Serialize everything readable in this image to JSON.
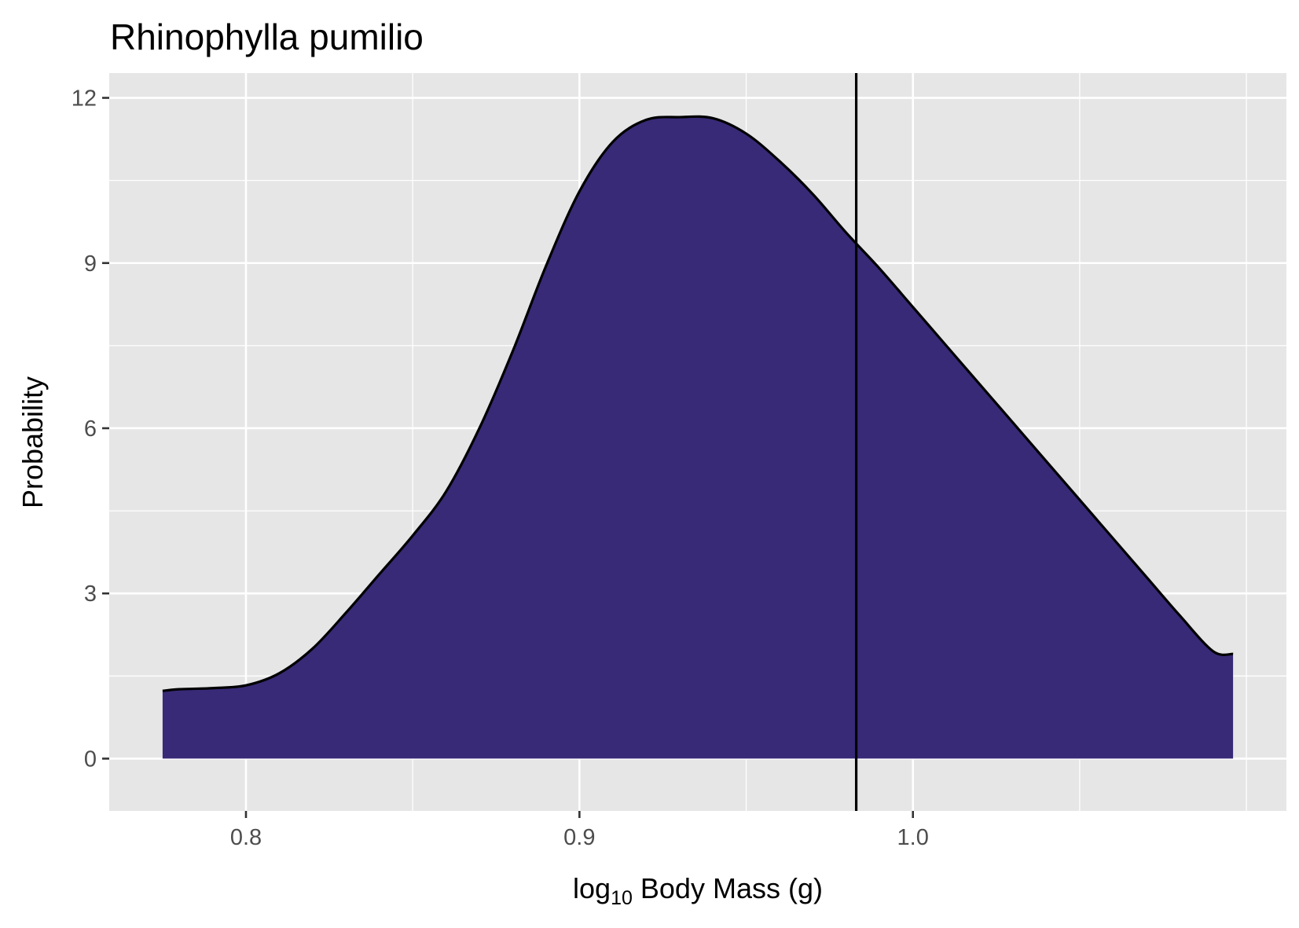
{
  "chart_data": {
    "type": "area",
    "title": "Rhinophylla pumilio",
    "xlabel": {
      "prefix": "log",
      "subscript": "10",
      "suffix": " Body Mass (g)"
    },
    "ylabel": "Probability",
    "xlim": [
      0.759,
      1.112
    ],
    "ylim": [
      -0.95,
      12.45
    ],
    "x_ticks": [
      {
        "value": 0.8,
        "label": "0.8"
      },
      {
        "value": 0.9,
        "label": "0.9"
      },
      {
        "value": 1.0,
        "label": "1.0"
      }
    ],
    "y_ticks": [
      {
        "value": 0,
        "label": "0"
      },
      {
        "value": 3,
        "label": "3"
      },
      {
        "value": 6,
        "label": "6"
      },
      {
        "value": 9,
        "label": "9"
      },
      {
        "value": 12,
        "label": "12"
      }
    ],
    "x_minor": [
      0.85,
      0.95,
      1.05,
      1.1
    ],
    "y_minor": [
      1.5,
      4.5,
      7.5,
      10.5
    ],
    "grid": true,
    "legend": "none",
    "density": {
      "x": [
        0.775,
        0.78,
        0.79,
        0.8,
        0.81,
        0.82,
        0.83,
        0.84,
        0.85,
        0.86,
        0.87,
        0.88,
        0.89,
        0.9,
        0.91,
        0.92,
        0.93,
        0.94,
        0.95,
        0.96,
        0.97,
        0.98,
        0.99,
        1.0,
        1.01,
        1.02,
        1.03,
        1.04,
        1.05,
        1.06,
        1.07,
        1.08,
        1.09,
        1.096
      ],
      "y": [
        1.23,
        1.26,
        1.28,
        1.33,
        1.55,
        2.0,
        2.65,
        3.35,
        4.05,
        4.85,
        6.0,
        7.4,
        8.95,
        10.3,
        11.2,
        11.6,
        11.65,
        11.63,
        11.35,
        10.85,
        10.25,
        9.55,
        8.9,
        8.2,
        7.5,
        6.8,
        6.1,
        5.4,
        4.7,
        4.0,
        3.3,
        2.6,
        1.95,
        1.9
      ]
    },
    "fill_color": "#382a77",
    "line_color": "#000000",
    "vline": {
      "x": 0.983,
      "color": "#000000"
    },
    "panel_background": "#e6e6e6",
    "grid_color": "#ffffff"
  }
}
